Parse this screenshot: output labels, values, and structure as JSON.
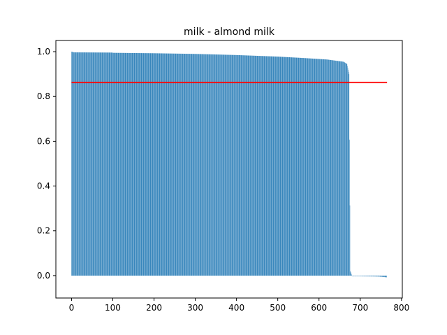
{
  "chart_data": {
    "type": "bar",
    "title": "milk - almond milk",
    "xlabel": "",
    "ylabel": "",
    "xlim": [
      -38,
      802
    ],
    "ylim": [
      -0.1,
      1.05
    ],
    "xticks": [
      0,
      100,
      200,
      300,
      400,
      500,
      600,
      700,
      800
    ],
    "yticks": [
      0.0,
      0.2,
      0.4,
      0.6,
      0.8,
      1.0
    ],
    "bar_color": "#1f77b4",
    "reference_line": {
      "y": 0.862,
      "x_range": [
        0,
        765
      ],
      "color": "#ff0000"
    },
    "n_bars": 765,
    "segments": [
      {
        "x_start": 0,
        "x_end": 5,
        "y_start": 1.0,
        "y_end": 0.998
      },
      {
        "x_start": 5,
        "x_end": 100,
        "y_start": 0.997,
        "y_end": 0.996
      },
      {
        "x_start": 100,
        "x_end": 200,
        "y_start": 0.995,
        "y_end": 0.993
      },
      {
        "x_start": 200,
        "x_end": 300,
        "y_start": 0.993,
        "y_end": 0.99
      },
      {
        "x_start": 300,
        "x_end": 400,
        "y_start": 0.99,
        "y_end": 0.985
      },
      {
        "x_start": 400,
        "x_end": 500,
        "y_start": 0.985,
        "y_end": 0.978
      },
      {
        "x_start": 500,
        "x_end": 560,
        "y_start": 0.978,
        "y_end": 0.972
      },
      {
        "x_start": 560,
        "x_end": 620,
        "y_start": 0.972,
        "y_end": 0.965
      },
      {
        "x_start": 620,
        "x_end": 660,
        "y_start": 0.965,
        "y_end": 0.955
      },
      {
        "x_start": 660,
        "x_end": 668,
        "y_start": 0.955,
        "y_end": 0.945
      },
      {
        "x_start": 668,
        "x_end": 673,
        "y_start": 0.945,
        "y_end": 0.9
      },
      {
        "x_start": 673,
        "x_end": 676,
        "y_start": 0.9,
        "y_end": 0.02
      },
      {
        "x_start": 676,
        "x_end": 680,
        "y_start": 0.02,
        "y_end": 0.0
      },
      {
        "x_start": 680,
        "x_end": 700,
        "y_start": -0.001,
        "y_end": -0.002
      },
      {
        "x_start": 700,
        "x_end": 745,
        "y_start": -0.002,
        "y_end": -0.004
      },
      {
        "x_start": 745,
        "x_end": 765,
        "y_start": -0.004,
        "y_end": -0.008
      }
    ]
  }
}
